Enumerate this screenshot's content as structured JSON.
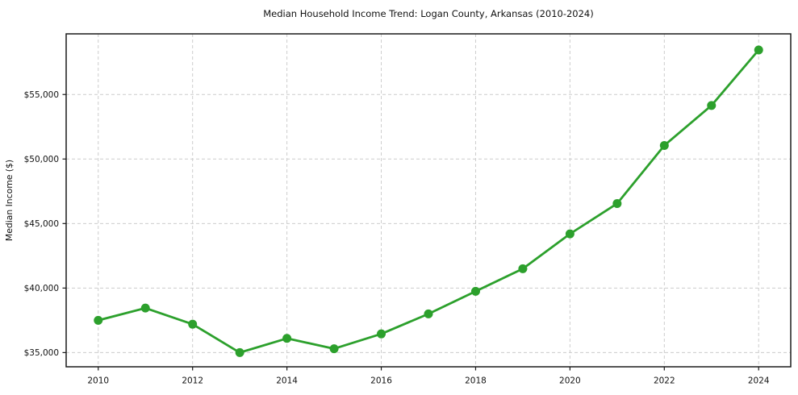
{
  "chart_data": {
    "type": "line",
    "title": "Median Household Income Trend: Logan County, Arkansas (2010-2024)",
    "xlabel": "",
    "ylabel": "Median Income ($)",
    "x": [
      2010,
      2011,
      2012,
      2013,
      2014,
      2015,
      2016,
      2017,
      2018,
      2019,
      2020,
      2021,
      2022,
      2023,
      2024
    ],
    "series": [
      {
        "name": "Median household income",
        "values": [
          37500,
          38450,
          37200,
          35000,
          36100,
          35300,
          36450,
          38000,
          39750,
          41500,
          44200,
          46550,
          51050,
          54150,
          58450
        ],
        "color": "#2ca02c"
      }
    ],
    "xticks": [
      2010,
      2012,
      2014,
      2016,
      2018,
      2020,
      2022,
      2024
    ],
    "xtick_labels": [
      "2010",
      "2012",
      "2014",
      "2016",
      "2018",
      "2020",
      "2022",
      "2024"
    ],
    "yticks": [
      35000,
      40000,
      45000,
      50000,
      55000
    ],
    "ytick_labels": [
      "$35,000",
      "$40,000",
      "$45,000",
      "$50,000",
      "$55,000"
    ],
    "xlim": [
      2009.32,
      2024.68
    ],
    "ylim": [
      33900,
      59700
    ],
    "grid": true,
    "grid_style": "dashed",
    "legend": "none",
    "marker": "circle",
    "colors": {
      "line": "#2ca02c",
      "grid": "#cccccc",
      "spine": "#1a1a1a",
      "text": "#111111",
      "background": "#ffffff"
    }
  }
}
